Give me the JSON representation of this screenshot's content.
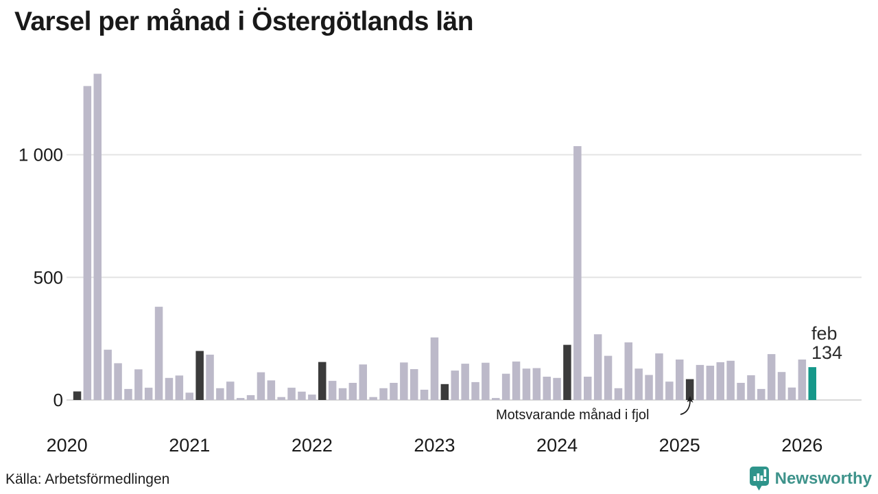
{
  "chart_data": {
    "type": "bar",
    "title": "Varsel per månad i Östergötlands län",
    "xlabel": "",
    "ylabel": "",
    "ylim": [
      0,
      1350
    ],
    "grid": "horizontal",
    "y_ticks": [
      {
        "v": 0,
        "label": "0"
      },
      {
        "v": 500,
        "label": "500"
      },
      {
        "v": 1000,
        "label": "1 000"
      }
    ],
    "year_labels": [
      "2020",
      "2021",
      "2022",
      "2023",
      "2024",
      "2025",
      "2026"
    ],
    "colors": {
      "normal": "#bcb9c9",
      "fjol": "#3b3b3b",
      "current": "#16988a"
    },
    "series": [
      {
        "label": "feb 2020",
        "value": 35,
        "kind": "fjol"
      },
      {
        "label": "mar 2020",
        "value": 1280,
        "kind": "normal"
      },
      {
        "label": "apr 2020",
        "value": 1330,
        "kind": "normal"
      },
      {
        "label": "maj 2020",
        "value": 205,
        "kind": "normal"
      },
      {
        "label": "jun 2020",
        "value": 150,
        "kind": "normal"
      },
      {
        "label": "jul 2020",
        "value": 45,
        "kind": "normal"
      },
      {
        "label": "aug 2020",
        "value": 125,
        "kind": "normal"
      },
      {
        "label": "sep 2020",
        "value": 50,
        "kind": "normal"
      },
      {
        "label": "okt 2020",
        "value": 380,
        "kind": "normal"
      },
      {
        "label": "nov 2020",
        "value": 90,
        "kind": "normal"
      },
      {
        "label": "dec 2020",
        "value": 100,
        "kind": "normal"
      },
      {
        "label": "jan 2021",
        "value": 30,
        "kind": "normal"
      },
      {
        "label": "feb 2021",
        "value": 200,
        "kind": "fjol"
      },
      {
        "label": "mar 2021",
        "value": 185,
        "kind": "normal"
      },
      {
        "label": "apr 2021",
        "value": 48,
        "kind": "normal"
      },
      {
        "label": "maj 2021",
        "value": 75,
        "kind": "normal"
      },
      {
        "label": "jun 2021",
        "value": 8,
        "kind": "normal"
      },
      {
        "label": "jul 2021",
        "value": 20,
        "kind": "normal"
      },
      {
        "label": "aug 2021",
        "value": 113,
        "kind": "normal"
      },
      {
        "label": "sep 2021",
        "value": 80,
        "kind": "normal"
      },
      {
        "label": "okt 2021",
        "value": 12,
        "kind": "normal"
      },
      {
        "label": "nov 2021",
        "value": 50,
        "kind": "normal"
      },
      {
        "label": "dec 2021",
        "value": 34,
        "kind": "normal"
      },
      {
        "label": "jan 2022",
        "value": 22,
        "kind": "normal"
      },
      {
        "label": "feb 2022",
        "value": 155,
        "kind": "fjol"
      },
      {
        "label": "mar 2022",
        "value": 78,
        "kind": "normal"
      },
      {
        "label": "apr 2022",
        "value": 48,
        "kind": "normal"
      },
      {
        "label": "maj 2022",
        "value": 70,
        "kind": "normal"
      },
      {
        "label": "jun 2022",
        "value": 145,
        "kind": "normal"
      },
      {
        "label": "jul 2022",
        "value": 12,
        "kind": "normal"
      },
      {
        "label": "aug 2022",
        "value": 48,
        "kind": "normal"
      },
      {
        "label": "sep 2022",
        "value": 70,
        "kind": "normal"
      },
      {
        "label": "okt 2022",
        "value": 153,
        "kind": "normal"
      },
      {
        "label": "nov 2022",
        "value": 126,
        "kind": "normal"
      },
      {
        "label": "dec 2022",
        "value": 42,
        "kind": "normal"
      },
      {
        "label": "jan 2023",
        "value": 255,
        "kind": "normal"
      },
      {
        "label": "feb 2023",
        "value": 65,
        "kind": "fjol"
      },
      {
        "label": "mar 2023",
        "value": 120,
        "kind": "normal"
      },
      {
        "label": "apr 2023",
        "value": 148,
        "kind": "normal"
      },
      {
        "label": "maj 2023",
        "value": 73,
        "kind": "normal"
      },
      {
        "label": "jun 2023",
        "value": 152,
        "kind": "normal"
      },
      {
        "label": "jul 2023",
        "value": 8,
        "kind": "normal"
      },
      {
        "label": "aug 2023",
        "value": 107,
        "kind": "normal"
      },
      {
        "label": "sep 2023",
        "value": 157,
        "kind": "normal"
      },
      {
        "label": "okt 2023",
        "value": 128,
        "kind": "normal"
      },
      {
        "label": "nov 2023",
        "value": 130,
        "kind": "normal"
      },
      {
        "label": "dec 2023",
        "value": 95,
        "kind": "normal"
      },
      {
        "label": "jan 2024",
        "value": 90,
        "kind": "normal"
      },
      {
        "label": "feb 2024",
        "value": 225,
        "kind": "fjol"
      },
      {
        "label": "mar 2024",
        "value": 1035,
        "kind": "normal"
      },
      {
        "label": "apr 2024",
        "value": 95,
        "kind": "normal"
      },
      {
        "label": "maj 2024",
        "value": 268,
        "kind": "normal"
      },
      {
        "label": "jun 2024",
        "value": 180,
        "kind": "normal"
      },
      {
        "label": "jul 2024",
        "value": 48,
        "kind": "normal"
      },
      {
        "label": "aug 2024",
        "value": 235,
        "kind": "normal"
      },
      {
        "label": "sep 2024",
        "value": 128,
        "kind": "normal"
      },
      {
        "label": "okt 2024",
        "value": 102,
        "kind": "normal"
      },
      {
        "label": "nov 2024",
        "value": 190,
        "kind": "normal"
      },
      {
        "label": "dec 2024",
        "value": 75,
        "kind": "normal"
      },
      {
        "label": "jan 2025",
        "value": 165,
        "kind": "normal"
      },
      {
        "label": "feb 2025",
        "value": 85,
        "kind": "fjol"
      },
      {
        "label": "mar 2025",
        "value": 143,
        "kind": "normal"
      },
      {
        "label": "apr 2025",
        "value": 140,
        "kind": "normal"
      },
      {
        "label": "maj 2025",
        "value": 154,
        "kind": "normal"
      },
      {
        "label": "jun 2025",
        "value": 160,
        "kind": "normal"
      },
      {
        "label": "jul 2025",
        "value": 70,
        "kind": "normal"
      },
      {
        "label": "aug 2025",
        "value": 101,
        "kind": "normal"
      },
      {
        "label": "sep 2025",
        "value": 45,
        "kind": "normal"
      },
      {
        "label": "okt 2025",
        "value": 187,
        "kind": "normal"
      },
      {
        "label": "nov 2025",
        "value": 114,
        "kind": "normal"
      },
      {
        "label": "dec 2025",
        "value": 51,
        "kind": "normal"
      },
      {
        "label": "jan 2026",
        "value": 165,
        "kind": "normal"
      },
      {
        "label": "feb 2026",
        "value": 134,
        "kind": "current"
      }
    ],
    "annotation": "Motsvarande månad i fjol",
    "current_point": {
      "month_label": "feb",
      "value_label": "134"
    }
  },
  "footer": {
    "source": "Källa: Arbetsförmedlingen",
    "brand": "Newsworthy"
  }
}
